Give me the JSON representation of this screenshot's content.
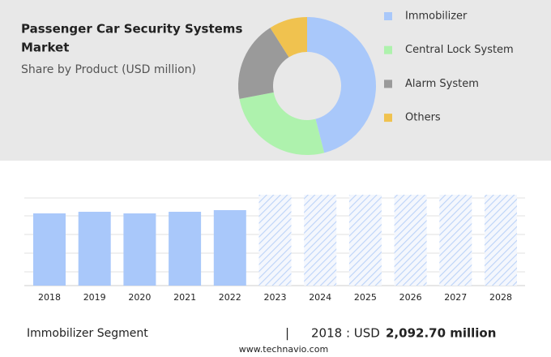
{
  "chart_data": [
    {
      "type": "pie",
      "title": "Passenger Car Security Systems",
      "title_line2": "Market",
      "subtitle": "Share by Product (USD million)",
      "categories": [
        "Immobilizer",
        "Central Lock System",
        "Alarm System",
        "Others"
      ],
      "values": [
        46,
        26,
        19,
        9
      ],
      "colors": [
        "#a9c8fa",
        "#aef2ad",
        "#9a9a9a",
        "#f0c24f"
      ],
      "donut": true,
      "legend": "right"
    },
    {
      "type": "bar",
      "categories": [
        "2018",
        "2019",
        "2020",
        "2021",
        "2022",
        "2023",
        "2024",
        "2025",
        "2026",
        "2027",
        "2028"
      ],
      "values": [
        2092.7,
        2139,
        2092,
        2139,
        2187,
        2633,
        2633,
        2633,
        2633,
        2633,
        2633
      ],
      "patterns": [
        "solid",
        "solid",
        "solid",
        "solid",
        "solid",
        "hatched",
        "hatched",
        "hatched",
        "hatched",
        "hatched",
        "hatched"
      ],
      "color": "#a9c8fa",
      "grid": true
    }
  ],
  "footer": {
    "segment": "Immobilizer Segment",
    "separator": "|",
    "prefix": "2018 : USD",
    "amount": "2,092.70 million",
    "source": "www.technavio.com"
  }
}
